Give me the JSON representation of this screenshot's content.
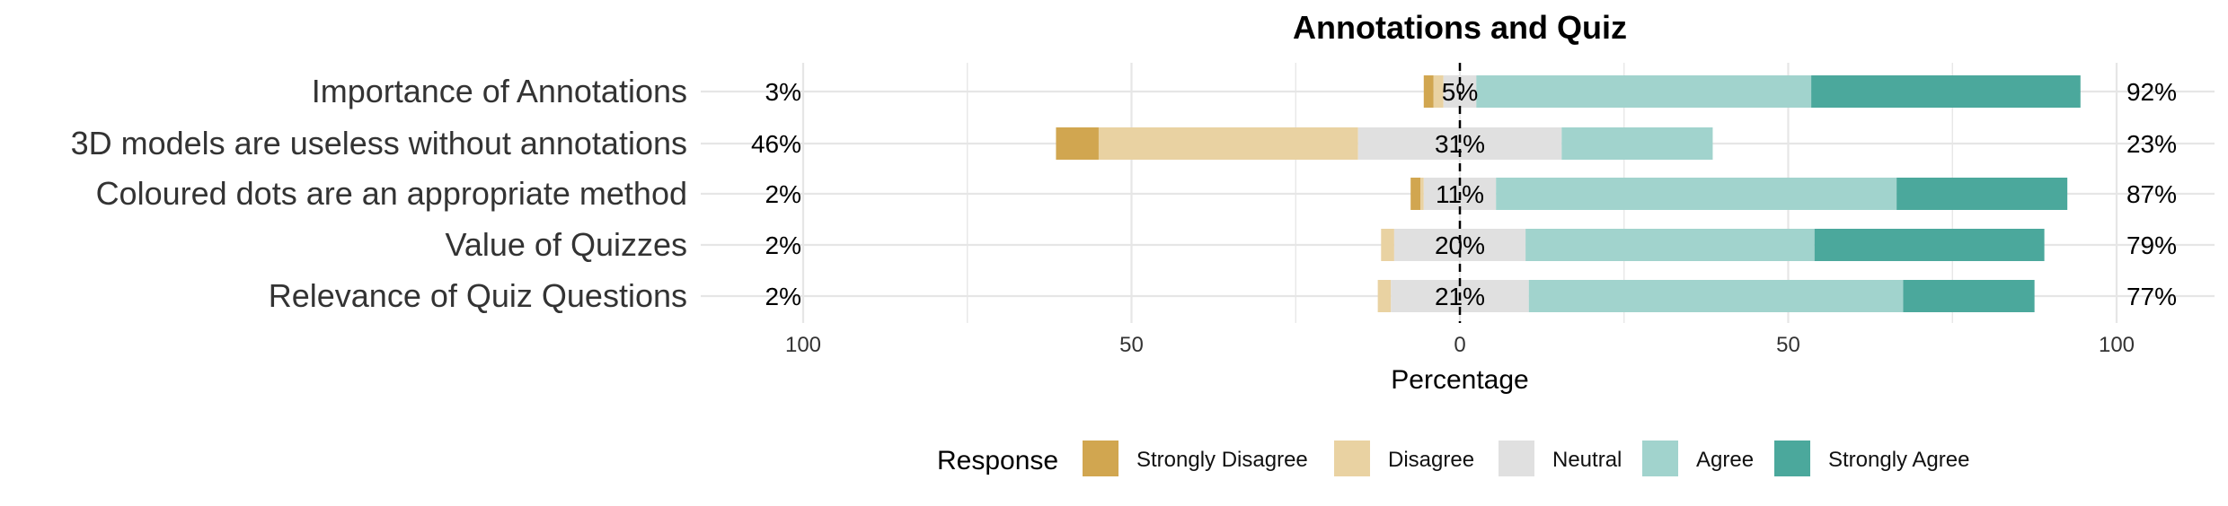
{
  "chart_data": {
    "type": "bar",
    "subtype": "diverging-stacked-horizontal",
    "title": "Annotations and Quiz",
    "xlabel": "Percentage",
    "ylabel": "",
    "xlim": [
      -100,
      100
    ],
    "x_ticks": [
      -100,
      -50,
      0,
      50,
      100
    ],
    "x_tick_labels": [
      "100",
      "50",
      "0",
      "50",
      "100"
    ],
    "grid": true,
    "zero_line": "dashed",
    "legend": {
      "title": "Response",
      "position": "bottom",
      "entries": [
        "Strongly Disagree",
        "Disagree",
        "Neutral",
        "Agree",
        "Strongly Agree"
      ]
    },
    "colors": {
      "Strongly Disagree": "#D1A650",
      "Disagree": "#E9D2A2",
      "Neutral": "#E0E0E0",
      "Agree": "#A1D3CD",
      "Strongly Agree": "#4BA89C"
    },
    "categories": [
      "Importance of Annotations",
      "3D models are useless without annotations",
      "Coloured dots are an appropriate method",
      "Value of Quizzes",
      "Relevance of Quiz Questions"
    ],
    "series": [
      {
        "name": "Strongly Disagree",
        "values": [
          1.5,
          6.5,
          1.5,
          0,
          0
        ]
      },
      {
        "name": "Disagree",
        "values": [
          1.5,
          39.5,
          0.5,
          2,
          2
        ]
      },
      {
        "name": "Neutral",
        "values": [
          5,
          31,
          11,
          20,
          21
        ]
      },
      {
        "name": "Agree",
        "values": [
          51,
          23,
          61,
          44,
          57
        ]
      },
      {
        "name": "Strongly Agree",
        "values": [
          41,
          0,
          26,
          35,
          20
        ]
      }
    ],
    "left_labels": [
      "3%",
      "46%",
      "2%",
      "2%",
      "2%"
    ],
    "center_labels": [
      "5%",
      "31%",
      "11%",
      "20%",
      "21%"
    ],
    "right_labels": [
      "92%",
      "23%",
      "87%",
      "79%",
      "77%"
    ]
  }
}
